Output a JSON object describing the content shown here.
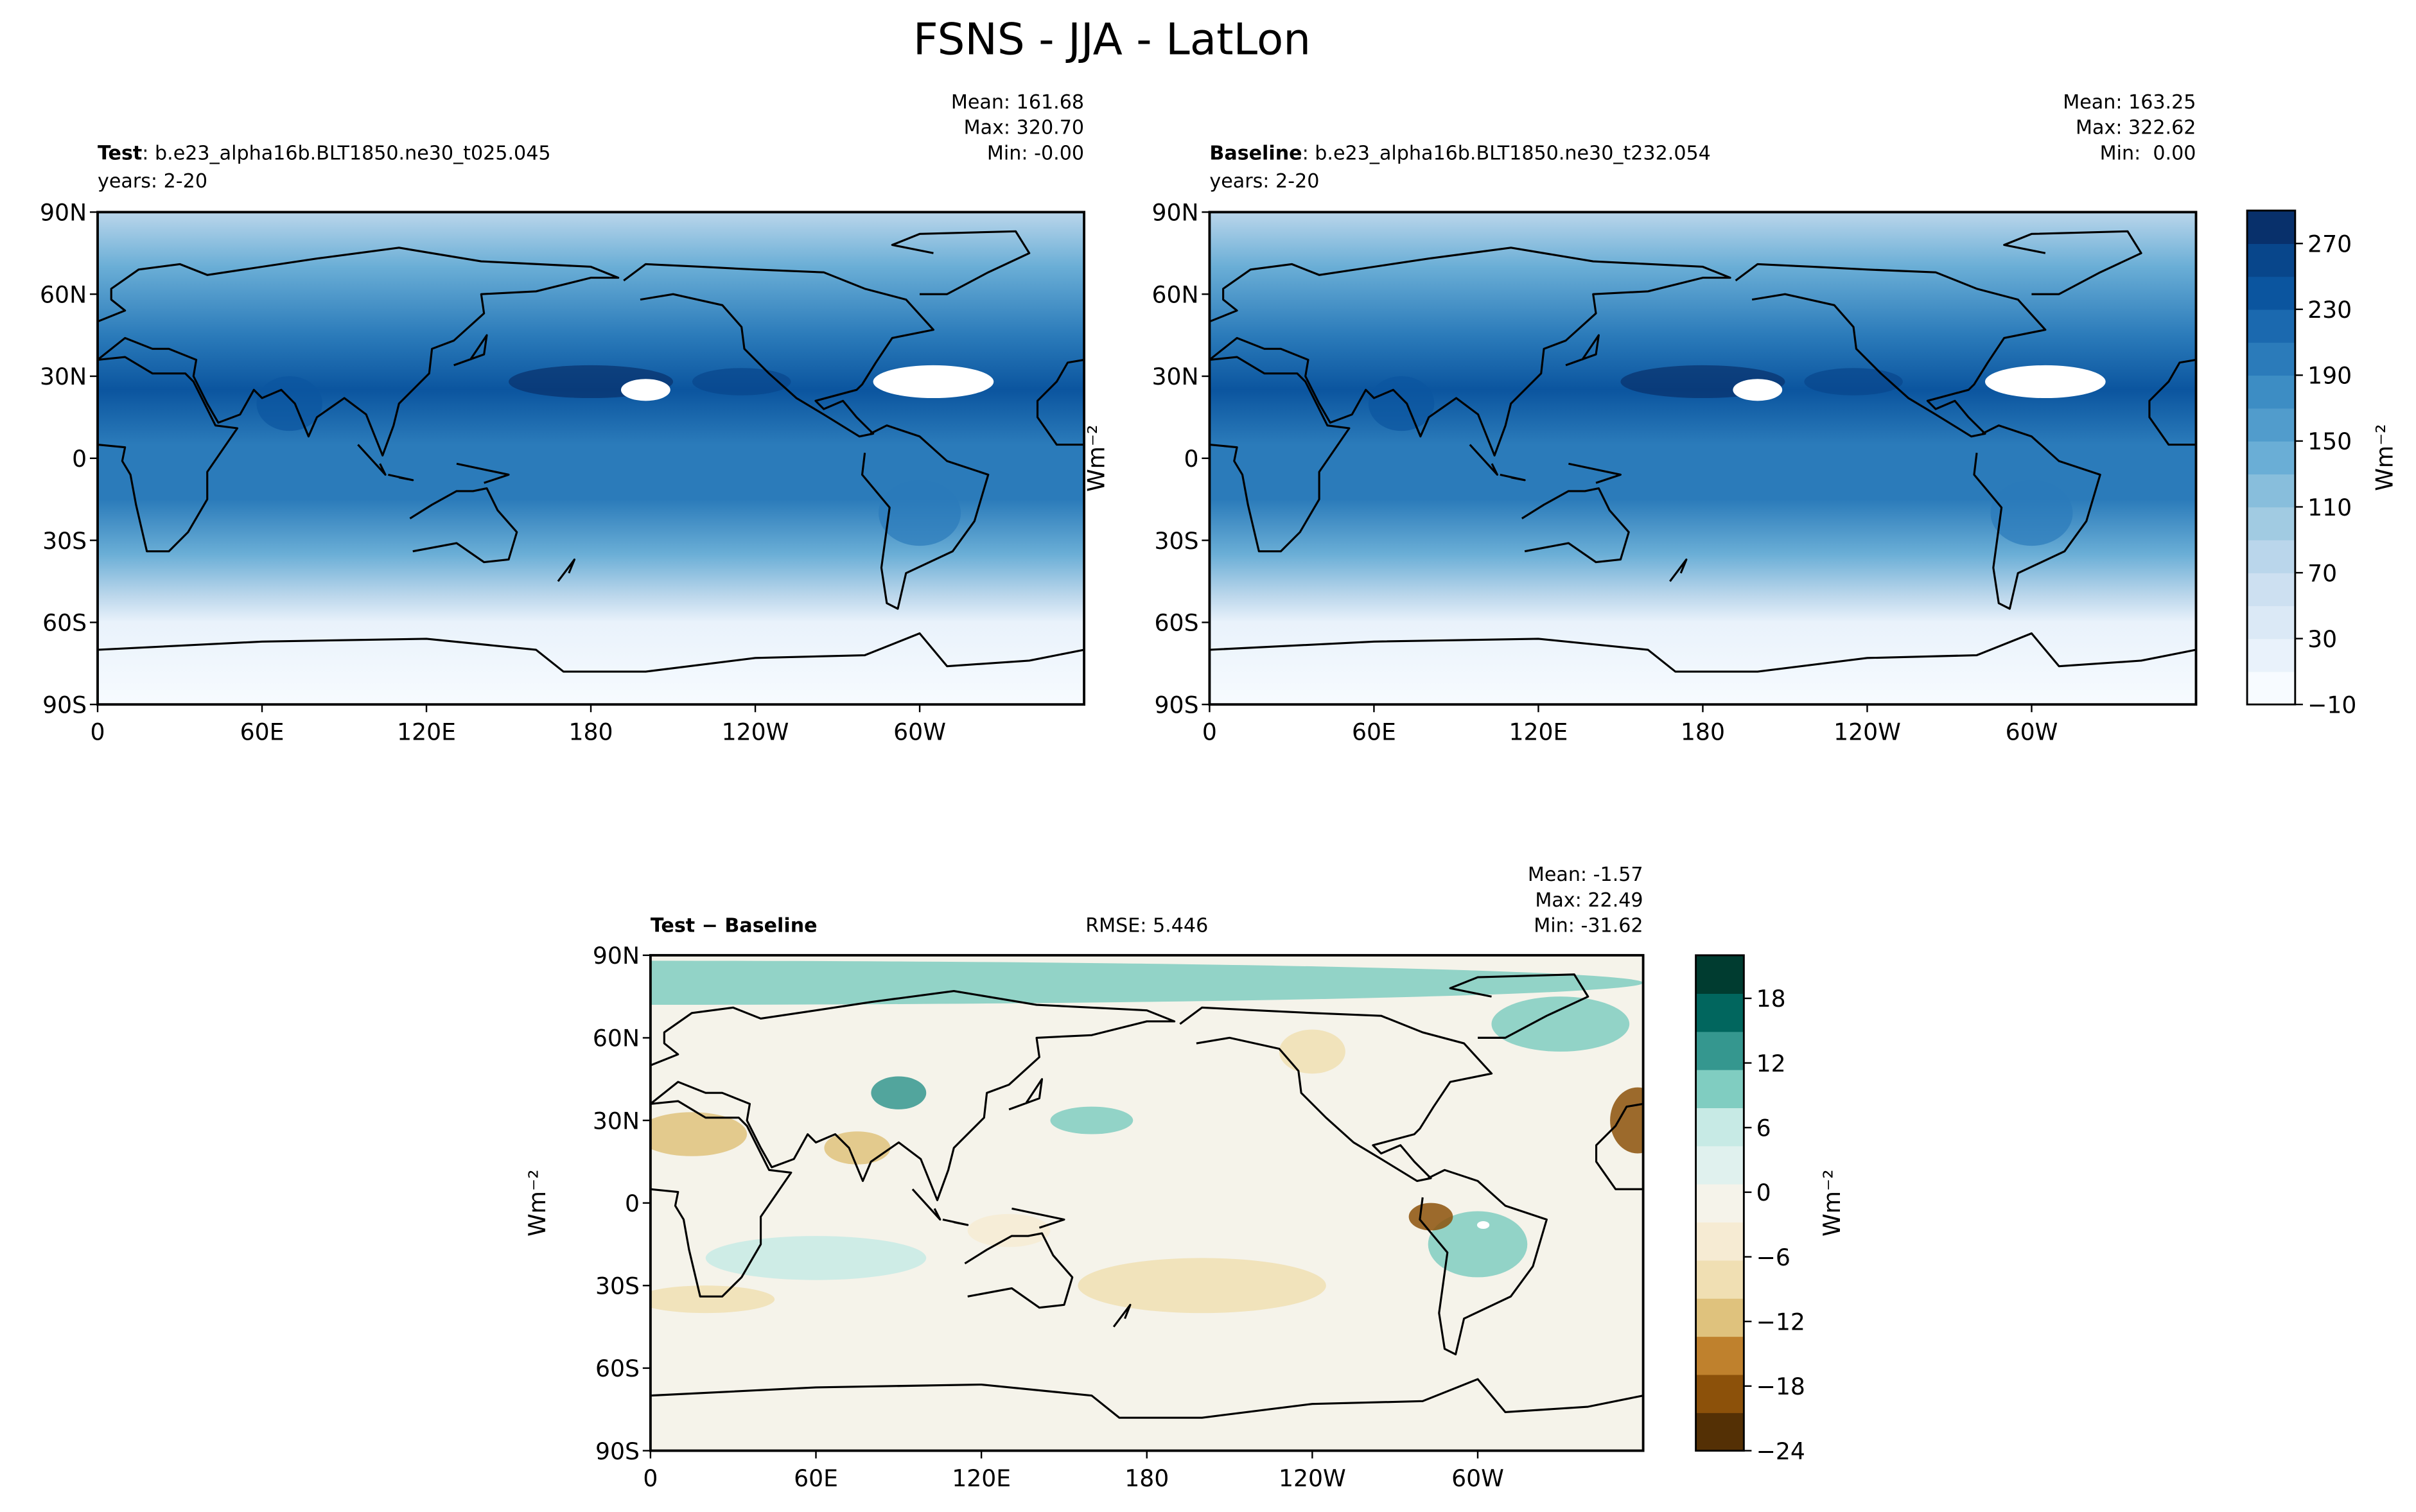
{
  "title": "FSNS - JJA - LatLon",
  "chart_data": [
    {
      "type": "contour-map",
      "label": "Test",
      "label_text": ": b.e23_alpha16b.BLT1850.ne30_t025.045",
      "subtitle": "years: 2-20",
      "stats": [
        "Mean: 161.68",
        "Max: 320.70",
        "Min: -0.00"
      ],
      "xlim": [
        0,
        360
      ],
      "xticks": [
        0,
        {
          "value": 60,
          "label": "60E"
        },
        {
          "value": 120,
          "label": "120E"
        },
        180,
        {
          "value": 240,
          "label": "120W"
        },
        {
          "value": 300,
          "label": "60W"
        }
      ],
      "ylim": [
        -90,
        90
      ],
      "yticks": [
        {
          "value": 90,
          "label": "90N"
        },
        {
          "value": 60,
          "label": "60N"
        },
        {
          "value": 30,
          "label": "30N"
        },
        0,
        {
          "value": -30,
          "label": "30S"
        },
        {
          "value": -60,
          "label": "60S"
        },
        {
          "value": -90,
          "label": "90S"
        }
      ],
      "colors": [
        "#f7fbff",
        "#e9f2fb",
        "#dbe9f6",
        "#cde0f1",
        "#bad6eb",
        "#a1cbe2",
        "#88bedc",
        "#6aaed6",
        "#519ccc",
        "#3d8dc4",
        "#2b7bba",
        "#1b69af",
        "#0b559f",
        "#08468b",
        "#08306b"
      ]
    },
    {
      "type": "contour-map",
      "label": "Baseline",
      "label_text": ": b.e23_alpha16b.BLT1850.ne30_t232.054",
      "subtitle": "years: 2-20",
      "stats": [
        "Mean: 163.25",
        "Max: 322.62",
        "Min:  0.00"
      ],
      "y_label": "Wm⁻²",
      "xlim": [
        0,
        360
      ],
      "xticks": [
        0,
        {
          "value": 60,
          "label": "60E"
        },
        {
          "value": 120,
          "label": "120E"
        },
        180,
        {
          "value": 240,
          "label": "120W"
        },
        {
          "value": 300,
          "label": "60W"
        }
      ],
      "ylim": [
        -90,
        90
      ],
      "yticks": [
        {
          "value": 90,
          "label": "90N"
        },
        {
          "value": 60,
          "label": "60N"
        },
        {
          "value": 30,
          "label": "30N"
        },
        0,
        {
          "value": -30,
          "label": "30S"
        },
        {
          "value": -60,
          "label": "60S"
        },
        {
          "value": -90,
          "label": "90S"
        }
      ],
      "colors": [
        "#f7fbff",
        "#e9f2fb",
        "#dbe9f6",
        "#cde0f1",
        "#bad6eb",
        "#a1cbe2",
        "#88bedc",
        "#6aaed6",
        "#519ccc",
        "#3d8dc4",
        "#2b7bba",
        "#1b69af",
        "#0b559f",
        "#08468b",
        "#08306b"
      ],
      "colorbar": {
        "clim": [
          -10,
          290
        ],
        "ticks": [
          {
            "value": -10,
            "label": "−10"
          },
          30,
          70,
          110,
          150,
          190,
          230,
          270
        ],
        "label": "Wm⁻²"
      }
    },
    {
      "type": "contour-map",
      "label": "Test − Baseline",
      "rmse": "RMSE: 5.446",
      "stats": [
        "Mean: -1.57",
        "Max: 22.49",
        "Min: -31.62"
      ],
      "y_label": "Wm⁻²",
      "xlim": [
        0,
        360
      ],
      "xticks": [
        0,
        {
          "value": 60,
          "label": "60E"
        },
        {
          "value": 120,
          "label": "120E"
        },
        180,
        {
          "value": 240,
          "label": "120W"
        },
        {
          "value": 300,
          "label": "60W"
        }
      ],
      "ylim": [
        -90,
        90
      ],
      "yticks": [
        {
          "value": 90,
          "label": "90N"
        },
        {
          "value": 60,
          "label": "60N"
        },
        {
          "value": 30,
          "label": "30N"
        },
        0,
        {
          "value": -30,
          "label": "30S"
        },
        {
          "value": -60,
          "label": "60S"
        },
        {
          "value": -90,
          "label": "90S"
        }
      ],
      "colors": [
        "#543005",
        "#8c510a",
        "#bf812d",
        "#dfc27d",
        "#f0dfb3",
        "#f6ebd3",
        "#f5f3ea",
        "#e0f1ee",
        "#c7eae5",
        "#80cdc1",
        "#35978f",
        "#01665e",
        "#003c30"
      ],
      "colorbar": {
        "clim": [
          -24,
          22
        ],
        "ticks": [
          {
            "value": -24,
            "label": "−24"
          },
          {
            "value": -18,
            "label": "−18"
          },
          {
            "value": -12,
            "label": "−12"
          },
          {
            "value": -6,
            "label": "−6"
          },
          0,
          6,
          12,
          18
        ],
        "label": "Wm⁻²"
      }
    }
  ]
}
